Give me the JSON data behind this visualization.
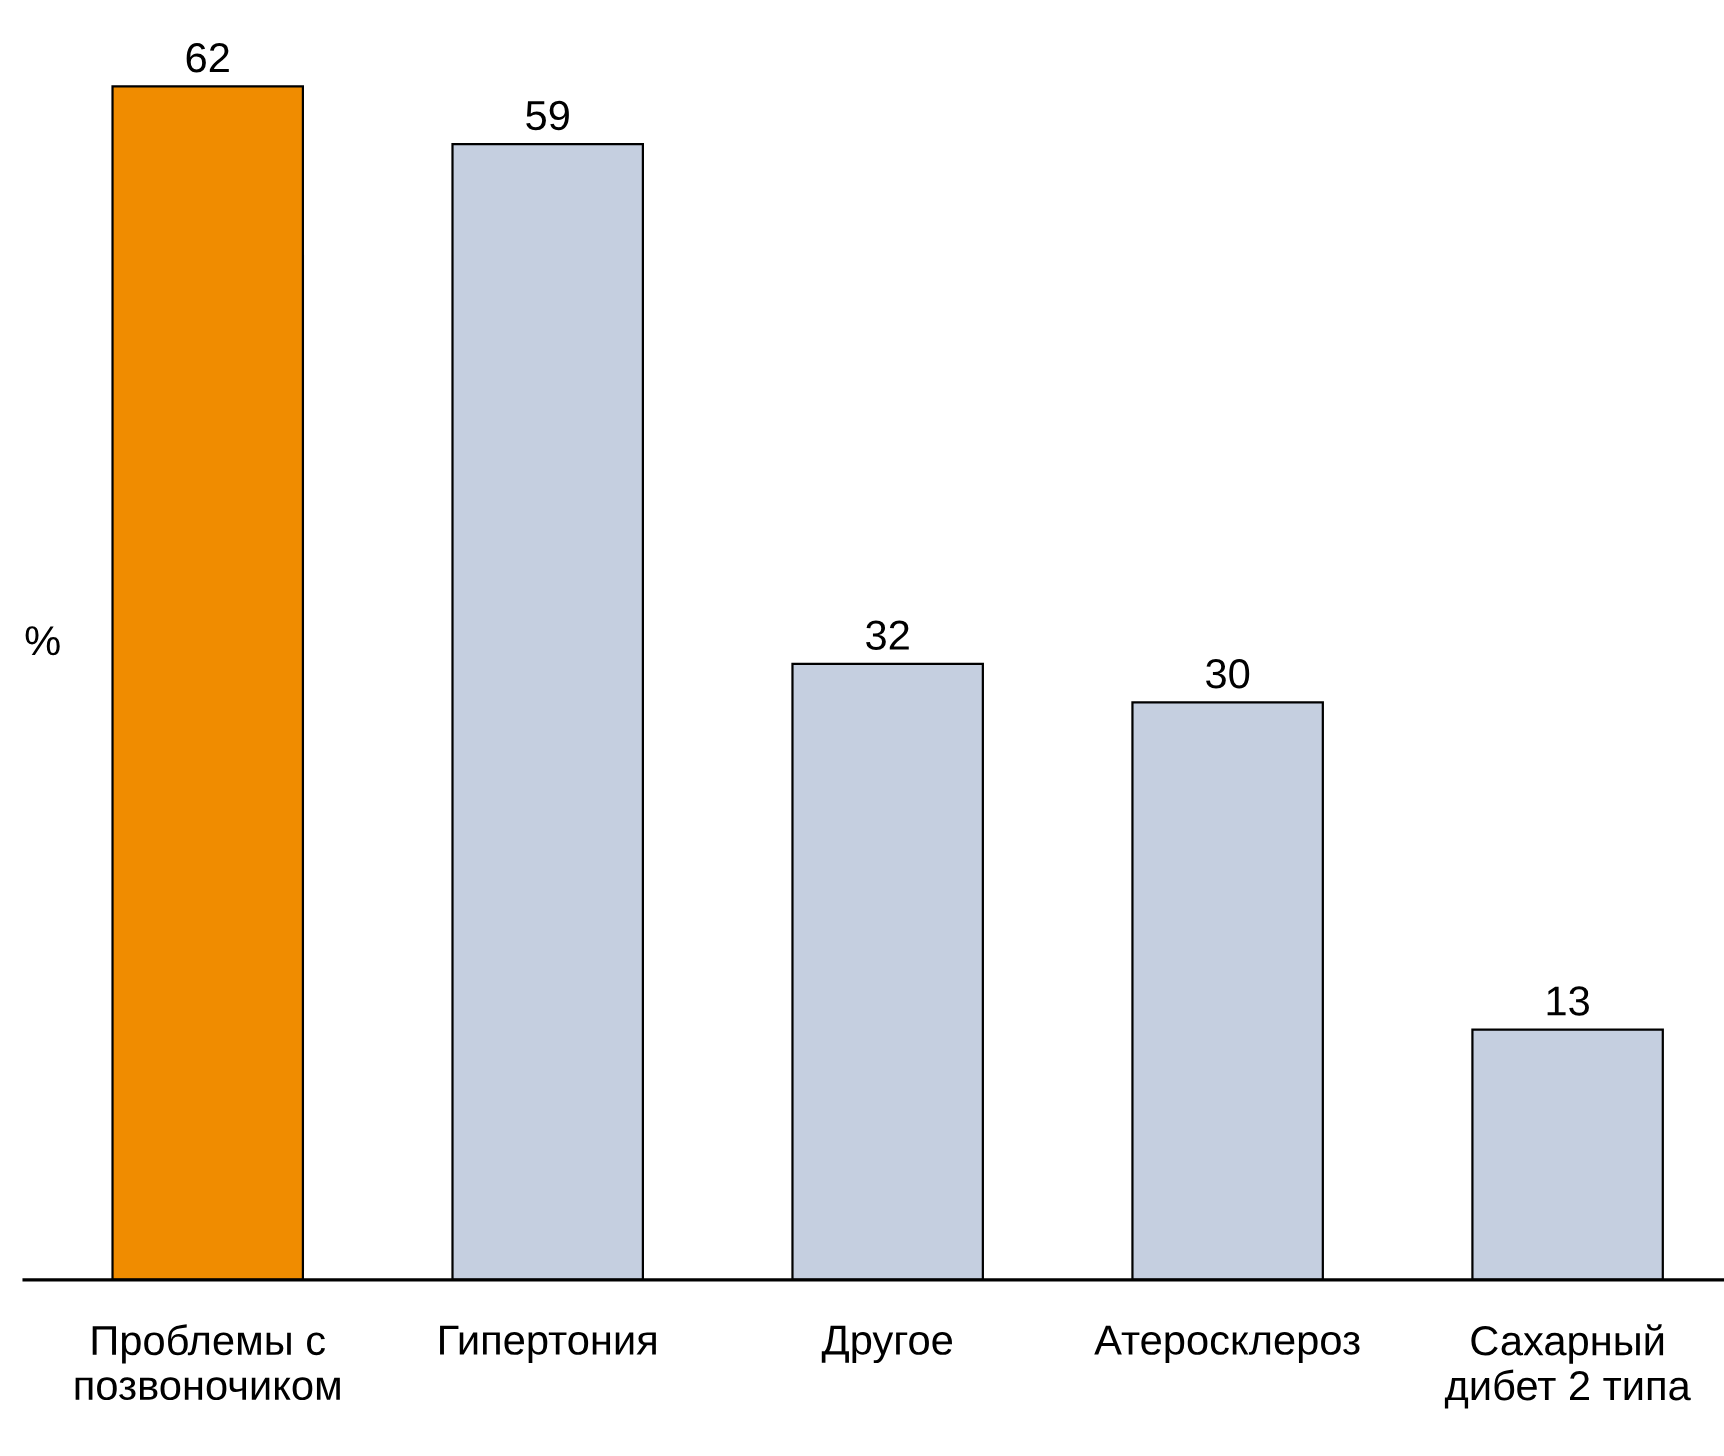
{
  "chart_data": {
    "type": "bar",
    "ylabel": "%",
    "categories": [
      "Проблемы с\nпозвоночиком",
      "Гипертония",
      "Другое",
      "Атеросклероз",
      "Сахарный\nдибет 2 типа"
    ],
    "values": [
      62,
      59,
      32,
      30,
      13
    ],
    "colors": [
      "#f08c00",
      "#c5cfe0",
      "#c5cfe0",
      "#c5cfe0",
      "#c5cfe0"
    ],
    "data_labels": true,
    "tick_labels": "x",
    "grid": false,
    "legend": false
  }
}
